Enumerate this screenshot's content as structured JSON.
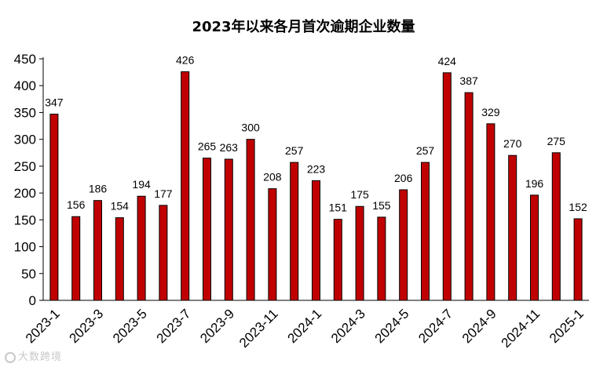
{
  "chart_data": {
    "type": "bar",
    "title": "2023年以来各月首次逾期企业数量",
    "xlabel": "",
    "ylabel": "",
    "ylim": [
      0,
      450
    ],
    "yticks": [
      0,
      50,
      100,
      150,
      200,
      250,
      300,
      350,
      400,
      450
    ],
    "categories": [
      "2023-1",
      "2023-2",
      "2023-3",
      "2023-4",
      "2023-5",
      "2023-6",
      "2023-7",
      "2023-8",
      "2023-9",
      "2023-10",
      "2023-11",
      "2023-12",
      "2024-1",
      "2024-2",
      "2024-3",
      "2024-4",
      "2024-5",
      "2024-6",
      "2024-7",
      "2024-8",
      "2024-9",
      "2024-10",
      "2024-11",
      "2024-12",
      "2025-1"
    ],
    "tick_labels": [
      "2023-1",
      "2023-3",
      "2023-5",
      "2023-7",
      "2023-9",
      "2023-11",
      "2024-1",
      "2024-3",
      "2024-5",
      "2024-7",
      "2024-9",
      "2024-11",
      "2025-1"
    ],
    "values": [
      347,
      156,
      186,
      154,
      194,
      177,
      426,
      265,
      263,
      300,
      208,
      257,
      223,
      151,
      175,
      155,
      206,
      257,
      424,
      387,
      329,
      270,
      196,
      275,
      152
    ],
    "data_labels": true,
    "grid": false,
    "legend": "none",
    "bar_color": "#c00000",
    "bar_edge_color": "#000000"
  },
  "watermark": "大数跨境"
}
